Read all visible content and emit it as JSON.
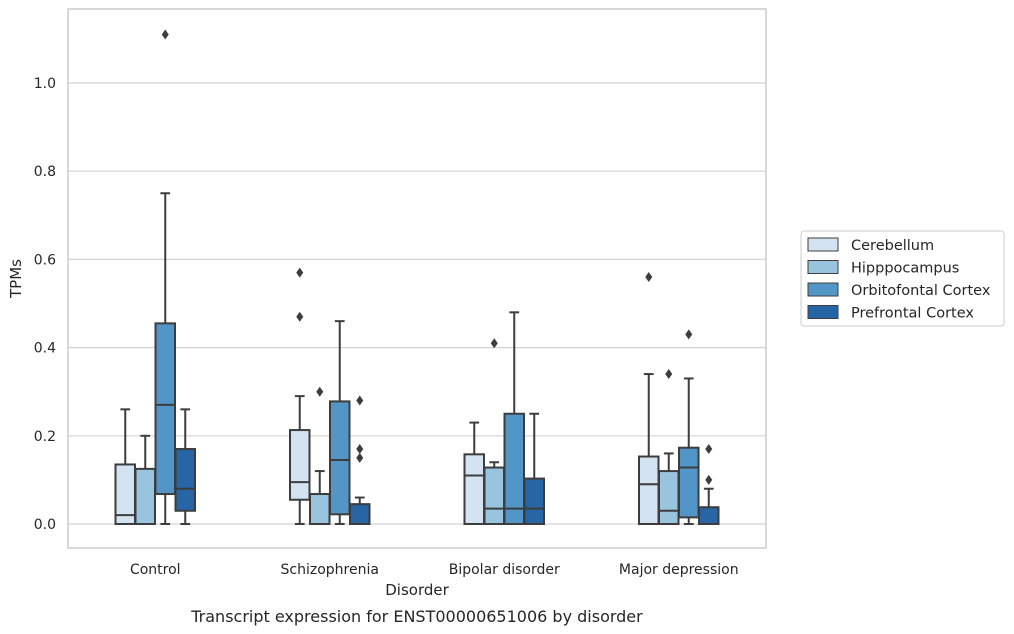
{
  "chart_data": {
    "type": "box",
    "title": "",
    "caption": "Transcript expression for ENST00000651006 by disorder",
    "xlabel": "Disorder",
    "ylabel": "TPMs",
    "ylim": [
      -0.055,
      1.175
    ],
    "yticks": [
      0.0,
      0.2,
      0.4,
      0.6,
      0.8,
      1.0
    ],
    "ytick_labels": [
      "0.0",
      "0.2",
      "0.4",
      "0.6",
      "0.8",
      "1.0"
    ],
    "grid": "horizontal",
    "legend_position": "right",
    "categories": [
      "Control",
      "Schizophrenia",
      "Bipolar disorder",
      "Major depression"
    ],
    "series": [
      {
        "name": "Cerebellum",
        "color": "#d3e3f2",
        "boxes": [
          {
            "whisker_low": 0.0,
            "q1": 0.0,
            "median": 0.02,
            "q3": 0.135,
            "whisker_high": 0.26,
            "outliers": []
          },
          {
            "whisker_low": 0.0,
            "q1": 0.055,
            "median": 0.095,
            "q3": 0.213,
            "whisker_high": 0.29,
            "outliers": [
              0.47,
              0.57
            ]
          },
          {
            "whisker_low": 0.0,
            "q1": 0.0,
            "median": 0.11,
            "q3": 0.158,
            "whisker_high": 0.23,
            "outliers": []
          },
          {
            "whisker_low": 0.0,
            "q1": 0.0,
            "median": 0.09,
            "q3": 0.153,
            "whisker_high": 0.34,
            "outliers": [
              0.56
            ]
          }
        ]
      },
      {
        "name": "Hipppocampus",
        "color": "#99c4de",
        "boxes": [
          {
            "whisker_low": 0.0,
            "q1": 0.0,
            "median": 0.0,
            "q3": 0.125,
            "whisker_high": 0.2,
            "outliers": []
          },
          {
            "whisker_low": 0.0,
            "q1": 0.0,
            "median": 0.0,
            "q3": 0.068,
            "whisker_high": 0.12,
            "outliers": [
              0.3
            ]
          },
          {
            "whisker_low": 0.0,
            "q1": 0.0,
            "median": 0.035,
            "q3": 0.128,
            "whisker_high": 0.14,
            "outliers": [
              0.41
            ]
          },
          {
            "whisker_low": 0.0,
            "q1": 0.0,
            "median": 0.03,
            "q3": 0.12,
            "whisker_high": 0.16,
            "outliers": [
              0.34
            ]
          }
        ]
      },
      {
        "name": "Orbitofontal Cortex",
        "color": "#5296c7",
        "boxes": [
          {
            "whisker_low": 0.0,
            "q1": 0.068,
            "median": 0.27,
            "q3": 0.455,
            "whisker_high": 0.75,
            "outliers": [
              1.11
            ]
          },
          {
            "whisker_low": 0.0,
            "q1": 0.022,
            "median": 0.145,
            "q3": 0.278,
            "whisker_high": 0.46,
            "outliers": []
          },
          {
            "whisker_low": 0.0,
            "q1": 0.0,
            "median": 0.035,
            "q3": 0.25,
            "whisker_high": 0.48,
            "outliers": []
          },
          {
            "whisker_low": 0.0,
            "q1": 0.015,
            "median": 0.128,
            "q3": 0.173,
            "whisker_high": 0.33,
            "outliers": [
              0.43
            ]
          }
        ]
      },
      {
        "name": "Prefrontal Cortex",
        "color": "#2765a5",
        "boxes": [
          {
            "whisker_low": 0.0,
            "q1": 0.03,
            "median": 0.08,
            "q3": 0.17,
            "whisker_high": 0.26,
            "outliers": []
          },
          {
            "whisker_low": 0.0,
            "q1": 0.0,
            "median": 0.0,
            "q3": 0.045,
            "whisker_high": 0.06,
            "outliers": [
              0.15,
              0.17,
              0.28
            ]
          },
          {
            "whisker_low": 0.0,
            "q1": 0.0,
            "median": 0.035,
            "q3": 0.103,
            "whisker_high": 0.25,
            "outliers": []
          },
          {
            "whisker_low": 0.0,
            "q1": 0.0,
            "median": 0.0,
            "q3": 0.038,
            "whisker_high": 0.08,
            "outliers": [
              0.1,
              0.17
            ]
          }
        ]
      }
    ]
  }
}
